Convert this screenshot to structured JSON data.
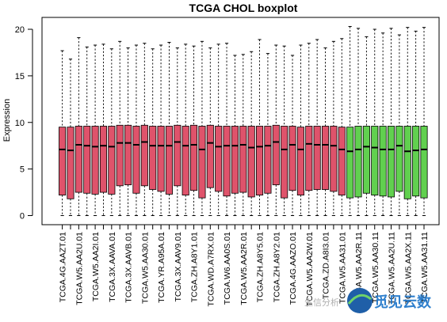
{
  "chart_data": {
    "type": "boxplot",
    "title": "TCGA CHOL boxplot",
    "xlabel": "",
    "ylabel": "Expression",
    "ylim": [
      0,
      20
    ],
    "yticks": [
      0,
      5,
      10,
      15,
      20
    ],
    "grid": false,
    "colors": {
      "tumor": "#DF536B",
      "normal": "#61D04F"
    },
    "samples": [
      {
        "name": "TCGA.4G.AAZT.01",
        "group": "tumor",
        "min": 0,
        "q1": 2.2,
        "median": 7.1,
        "q3": 9.5,
        "max": 17.7
      },
      {
        "name": "",
        "group": "tumor",
        "min": 0,
        "q1": 1.8,
        "median": 7.0,
        "q3": 9.5,
        "max": 16.8
      },
      {
        "name": "TCGA.W5.AA2U.01",
        "group": "tumor",
        "min": 0,
        "q1": 2.5,
        "median": 7.6,
        "q3": 9.6,
        "max": 19.1
      },
      {
        "name": "",
        "group": "tumor",
        "min": 0,
        "q1": 2.4,
        "median": 7.5,
        "q3": 9.6,
        "max": 18.1
      },
      {
        "name": "TCGA.W5.AA2I.01",
        "group": "tumor",
        "min": 0,
        "q1": 2.3,
        "median": 7.4,
        "q3": 9.6,
        "max": 18.3
      },
      {
        "name": "",
        "group": "tumor",
        "min": 0,
        "q1": 2.5,
        "median": 7.5,
        "q3": 9.6,
        "max": 18.4
      },
      {
        "name": "TCGA.3X.AAVA.01",
        "group": "tumor",
        "min": 0,
        "q1": 2.3,
        "median": 7.4,
        "q3": 9.6,
        "max": 17.9
      },
      {
        "name": "",
        "group": "tumor",
        "min": 0,
        "q1": 3.2,
        "median": 7.8,
        "q3": 9.7,
        "max": 18.7
      },
      {
        "name": "TCGA.3X.AAVB.01",
        "group": "tumor",
        "min": 0,
        "q1": 3.3,
        "median": 7.8,
        "q3": 9.7,
        "max": 18.0
      },
      {
        "name": "",
        "group": "tumor",
        "min": 0,
        "q1": 2.4,
        "median": 7.6,
        "q3": 9.6,
        "max": 18.3
      },
      {
        "name": "TCGA.W5.AA30.01",
        "group": "tumor",
        "min": 0,
        "q1": 3.2,
        "median": 7.9,
        "q3": 9.7,
        "max": 18.5
      },
      {
        "name": "",
        "group": "tumor",
        "min": 0,
        "q1": 2.8,
        "median": 7.5,
        "q3": 9.6,
        "max": 17.9
      },
      {
        "name": "TCGA.YR.A95A.01",
        "group": "tumor",
        "min": 0,
        "q1": 2.6,
        "median": 7.5,
        "q3": 9.6,
        "max": 18.3
      },
      {
        "name": "",
        "group": "tumor",
        "min": 0,
        "q1": 2.3,
        "median": 7.5,
        "q3": 9.6,
        "max": 18.6
      },
      {
        "name": "TCGA.3X.AAV9.01",
        "group": "tumor",
        "min": 0,
        "q1": 3.2,
        "median": 7.9,
        "q3": 9.7,
        "max": 18.0
      },
      {
        "name": "",
        "group": "tumor",
        "min": 0,
        "q1": 2.2,
        "median": 7.5,
        "q3": 9.6,
        "max": 18.4
      },
      {
        "name": "TCGA.ZH.A8Y1.01",
        "group": "tumor",
        "min": 0,
        "q1": 2.7,
        "median": 7.6,
        "q3": 9.7,
        "max": 18.2
      },
      {
        "name": "",
        "group": "tumor",
        "min": 0,
        "q1": 1.9,
        "median": 7.1,
        "q3": 9.6,
        "max": 18.7
      },
      {
        "name": "TCGA.WD.A7RX.01",
        "group": "tumor",
        "min": 0,
        "q1": 3.0,
        "median": 7.8,
        "q3": 9.7,
        "max": 18.0
      },
      {
        "name": "",
        "group": "tumor",
        "min": 0,
        "q1": 2.6,
        "median": 7.4,
        "q3": 9.6,
        "max": 18.4
      },
      {
        "name": "TCGA.W6.AA0S.01",
        "group": "tumor",
        "min": 0,
        "q1": 2.1,
        "median": 7.5,
        "q3": 9.6,
        "max": 18.5
      },
      {
        "name": "",
        "group": "tumor",
        "min": 0,
        "q1": 2.4,
        "median": 7.5,
        "q3": 9.6,
        "max": 17.2
      },
      {
        "name": "TCGA.W5.AA2R.01",
        "group": "tumor",
        "min": 0,
        "q1": 2.5,
        "median": 7.6,
        "q3": 9.6,
        "max": 17.3
      },
      {
        "name": "",
        "group": "tumor",
        "min": 0,
        "q1": 2.0,
        "median": 7.3,
        "q3": 9.6,
        "max": 17.6
      },
      {
        "name": "TCGA.ZH.A8Y5.01",
        "group": "tumor",
        "min": 0,
        "q1": 2.2,
        "median": 7.4,
        "q3": 9.6,
        "max": 18.9
      },
      {
        "name": "",
        "group": "tumor",
        "min": 0,
        "q1": 2.4,
        "median": 7.5,
        "q3": 9.6,
        "max": 17.4
      },
      {
        "name": "TCGA.ZH.A8Y2.01",
        "group": "tumor",
        "min": 0,
        "q1": 3.3,
        "median": 7.9,
        "q3": 9.7,
        "max": 18.3
      },
      {
        "name": "",
        "group": "tumor",
        "min": 0,
        "q1": 1.9,
        "median": 7.1,
        "q3": 9.6,
        "max": 18.2
      },
      {
        "name": "TCGA.4G.AAZO.01",
        "group": "tumor",
        "min": 0,
        "q1": 2.7,
        "median": 7.6,
        "q3": 9.6,
        "max": 17.2
      },
      {
        "name": "",
        "group": "tumor",
        "min": 0,
        "q1": 2.2,
        "median": 7.1,
        "q3": 9.5,
        "max": 18.3
      },
      {
        "name": "TCGA.W5.AA2W.01",
        "group": "tumor",
        "min": 0,
        "q1": 2.7,
        "median": 7.7,
        "q3": 9.6,
        "max": 18.5
      },
      {
        "name": "",
        "group": "tumor",
        "min": 0,
        "q1": 2.8,
        "median": 7.6,
        "q3": 9.6,
        "max": 18.9
      },
      {
        "name": "TCGA.ZD.A8I3.01",
        "group": "tumor",
        "min": 0,
        "q1": 2.8,
        "median": 7.6,
        "q3": 9.6,
        "max": 18.0
      },
      {
        "name": "",
        "group": "tumor",
        "min": 0,
        "q1": 2.6,
        "median": 7.5,
        "q3": 9.6,
        "max": 18.7
      },
      {
        "name": "TCGA.W5.AA31.01",
        "group": "tumor",
        "min": 0,
        "q1": 2.2,
        "median": 7.1,
        "q3": 9.5,
        "max": 19.0
      },
      {
        "name": "",
        "group": "normal",
        "min": 0,
        "q1": 1.9,
        "median": 6.9,
        "q3": 9.5,
        "max": 20.3
      },
      {
        "name": "TCGA.W5.AA2R.11",
        "group": "normal",
        "min": 0,
        "q1": 2.0,
        "median": 7.1,
        "q3": 9.6,
        "max": 20.1
      },
      {
        "name": "",
        "group": "normal",
        "min": 0,
        "q1": 2.4,
        "median": 7.4,
        "q3": 9.6,
        "max": 19.2
      },
      {
        "name": "TCGA.W5.AA30.11",
        "group": "normal",
        "min": 0,
        "q1": 2.2,
        "median": 7.3,
        "q3": 9.6,
        "max": 20.0
      },
      {
        "name": "",
        "group": "normal",
        "min": 0,
        "q1": 2.1,
        "median": 7.1,
        "q3": 9.6,
        "max": 19.6
      },
      {
        "name": "TCGA.W5.AA2U.11",
        "group": "normal",
        "min": 0,
        "q1": 2.0,
        "median": 7.1,
        "q3": 9.6,
        "max": 20.1
      },
      {
        "name": "",
        "group": "normal",
        "min": 0,
        "q1": 2.6,
        "median": 7.5,
        "q3": 9.6,
        "max": 19.4
      },
      {
        "name": "TCGA.W5.AA2X.11",
        "group": "normal",
        "min": 0,
        "q1": 1.8,
        "median": 6.9,
        "q3": 9.6,
        "max": 20.2
      },
      {
        "name": "",
        "group": "normal",
        "min": 0,
        "q1": 2.1,
        "median": 7.0,
        "q3": 9.6,
        "max": 19.8
      },
      {
        "name": "TCGA.W5.AA31.11",
        "group": "normal",
        "min": 0,
        "q1": 1.9,
        "median": 7.1,
        "q3": 9.6,
        "max": 20.2
      }
    ]
  },
  "watermark": {
    "small_text": "生信分析",
    "logo_text": "觅见云数"
  }
}
